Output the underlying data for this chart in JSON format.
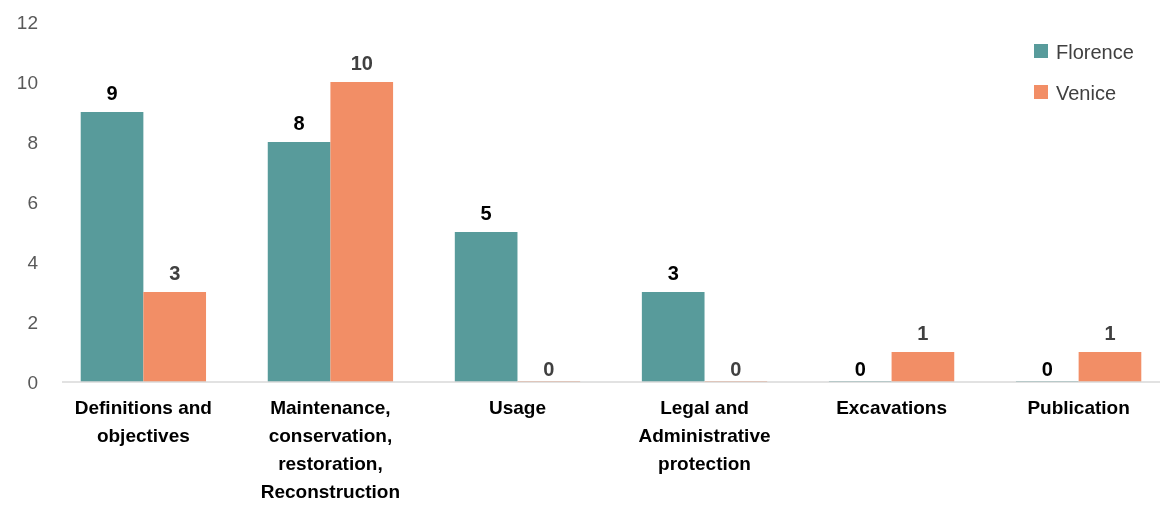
{
  "chart_data": {
    "type": "bar",
    "categories": [
      "Definitions and objectives",
      "Maintenance, conservation, restoration, Reconstruction",
      "Usage",
      "Legal and Administrative protection",
      "Excavations",
      "Publication"
    ],
    "series": [
      {
        "name": "Florence",
        "color": "#589b9b",
        "values": [
          9,
          8,
          5,
          3,
          0,
          0
        ]
      },
      {
        "name": "Venice",
        "color": "#f28e66",
        "values": [
          3,
          10,
          0,
          0,
          1,
          1
        ]
      }
    ],
    "ylim": [
      0,
      12
    ],
    "yticks": [
      0,
      2,
      4,
      6,
      8,
      10,
      12
    ],
    "grid": false,
    "legend": "top right",
    "data_labels": true
  }
}
